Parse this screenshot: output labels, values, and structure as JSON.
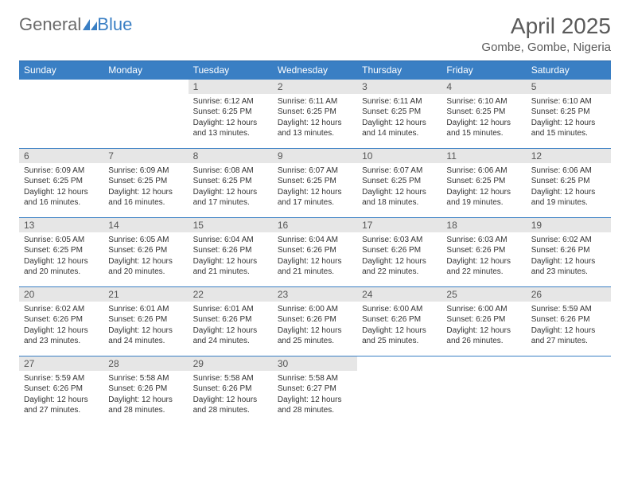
{
  "brand": {
    "text_general": "General",
    "text_blue": "Blue",
    "logo_color": "#3a7fc4",
    "text_gray": "#6a6a6a"
  },
  "header": {
    "month_title": "April 2025",
    "location": "Gombe, Gombe, Nigeria"
  },
  "styling": {
    "header_bg": "#3a7fc4",
    "header_text": "#ffffff",
    "daynum_bg": "#e6e6e6",
    "daynum_text": "#555555",
    "body_text": "#333333",
    "row_border": "#3a7fc4",
    "page_bg": "#ffffff",
    "font_family": "Arial, Helvetica, sans-serif",
    "month_title_fontsize": 28,
    "location_fontsize": 15,
    "weekday_fontsize": 12,
    "daynum_fontsize": 12,
    "cell_fontsize": 10
  },
  "weekdays": [
    "Sunday",
    "Monday",
    "Tuesday",
    "Wednesday",
    "Thursday",
    "Friday",
    "Saturday"
  ],
  "weeks": [
    [
      null,
      null,
      {
        "n": "1",
        "sunrise": "Sunrise: 6:12 AM",
        "sunset": "Sunset: 6:25 PM",
        "daylight": "Daylight: 12 hours and 13 minutes."
      },
      {
        "n": "2",
        "sunrise": "Sunrise: 6:11 AM",
        "sunset": "Sunset: 6:25 PM",
        "daylight": "Daylight: 12 hours and 13 minutes."
      },
      {
        "n": "3",
        "sunrise": "Sunrise: 6:11 AM",
        "sunset": "Sunset: 6:25 PM",
        "daylight": "Daylight: 12 hours and 14 minutes."
      },
      {
        "n": "4",
        "sunrise": "Sunrise: 6:10 AM",
        "sunset": "Sunset: 6:25 PM",
        "daylight": "Daylight: 12 hours and 15 minutes."
      },
      {
        "n": "5",
        "sunrise": "Sunrise: 6:10 AM",
        "sunset": "Sunset: 6:25 PM",
        "daylight": "Daylight: 12 hours and 15 minutes."
      }
    ],
    [
      {
        "n": "6",
        "sunrise": "Sunrise: 6:09 AM",
        "sunset": "Sunset: 6:25 PM",
        "daylight": "Daylight: 12 hours and 16 minutes."
      },
      {
        "n": "7",
        "sunrise": "Sunrise: 6:09 AM",
        "sunset": "Sunset: 6:25 PM",
        "daylight": "Daylight: 12 hours and 16 minutes."
      },
      {
        "n": "8",
        "sunrise": "Sunrise: 6:08 AM",
        "sunset": "Sunset: 6:25 PM",
        "daylight": "Daylight: 12 hours and 17 minutes."
      },
      {
        "n": "9",
        "sunrise": "Sunrise: 6:07 AM",
        "sunset": "Sunset: 6:25 PM",
        "daylight": "Daylight: 12 hours and 17 minutes."
      },
      {
        "n": "10",
        "sunrise": "Sunrise: 6:07 AM",
        "sunset": "Sunset: 6:25 PM",
        "daylight": "Daylight: 12 hours and 18 minutes."
      },
      {
        "n": "11",
        "sunrise": "Sunrise: 6:06 AM",
        "sunset": "Sunset: 6:25 PM",
        "daylight": "Daylight: 12 hours and 19 minutes."
      },
      {
        "n": "12",
        "sunrise": "Sunrise: 6:06 AM",
        "sunset": "Sunset: 6:25 PM",
        "daylight": "Daylight: 12 hours and 19 minutes."
      }
    ],
    [
      {
        "n": "13",
        "sunrise": "Sunrise: 6:05 AM",
        "sunset": "Sunset: 6:25 PM",
        "daylight": "Daylight: 12 hours and 20 minutes."
      },
      {
        "n": "14",
        "sunrise": "Sunrise: 6:05 AM",
        "sunset": "Sunset: 6:26 PM",
        "daylight": "Daylight: 12 hours and 20 minutes."
      },
      {
        "n": "15",
        "sunrise": "Sunrise: 6:04 AM",
        "sunset": "Sunset: 6:26 PM",
        "daylight": "Daylight: 12 hours and 21 minutes."
      },
      {
        "n": "16",
        "sunrise": "Sunrise: 6:04 AM",
        "sunset": "Sunset: 6:26 PM",
        "daylight": "Daylight: 12 hours and 21 minutes."
      },
      {
        "n": "17",
        "sunrise": "Sunrise: 6:03 AM",
        "sunset": "Sunset: 6:26 PM",
        "daylight": "Daylight: 12 hours and 22 minutes."
      },
      {
        "n": "18",
        "sunrise": "Sunrise: 6:03 AM",
        "sunset": "Sunset: 6:26 PM",
        "daylight": "Daylight: 12 hours and 22 minutes."
      },
      {
        "n": "19",
        "sunrise": "Sunrise: 6:02 AM",
        "sunset": "Sunset: 6:26 PM",
        "daylight": "Daylight: 12 hours and 23 minutes."
      }
    ],
    [
      {
        "n": "20",
        "sunrise": "Sunrise: 6:02 AM",
        "sunset": "Sunset: 6:26 PM",
        "daylight": "Daylight: 12 hours and 23 minutes."
      },
      {
        "n": "21",
        "sunrise": "Sunrise: 6:01 AM",
        "sunset": "Sunset: 6:26 PM",
        "daylight": "Daylight: 12 hours and 24 minutes."
      },
      {
        "n": "22",
        "sunrise": "Sunrise: 6:01 AM",
        "sunset": "Sunset: 6:26 PM",
        "daylight": "Daylight: 12 hours and 24 minutes."
      },
      {
        "n": "23",
        "sunrise": "Sunrise: 6:00 AM",
        "sunset": "Sunset: 6:26 PM",
        "daylight": "Daylight: 12 hours and 25 minutes."
      },
      {
        "n": "24",
        "sunrise": "Sunrise: 6:00 AM",
        "sunset": "Sunset: 6:26 PM",
        "daylight": "Daylight: 12 hours and 25 minutes."
      },
      {
        "n": "25",
        "sunrise": "Sunrise: 6:00 AM",
        "sunset": "Sunset: 6:26 PM",
        "daylight": "Daylight: 12 hours and 26 minutes."
      },
      {
        "n": "26",
        "sunrise": "Sunrise: 5:59 AM",
        "sunset": "Sunset: 6:26 PM",
        "daylight": "Daylight: 12 hours and 27 minutes."
      }
    ],
    [
      {
        "n": "27",
        "sunrise": "Sunrise: 5:59 AM",
        "sunset": "Sunset: 6:26 PM",
        "daylight": "Daylight: 12 hours and 27 minutes."
      },
      {
        "n": "28",
        "sunrise": "Sunrise: 5:58 AM",
        "sunset": "Sunset: 6:26 PM",
        "daylight": "Daylight: 12 hours and 28 minutes."
      },
      {
        "n": "29",
        "sunrise": "Sunrise: 5:58 AM",
        "sunset": "Sunset: 6:26 PM",
        "daylight": "Daylight: 12 hours and 28 minutes."
      },
      {
        "n": "30",
        "sunrise": "Sunrise: 5:58 AM",
        "sunset": "Sunset: 6:27 PM",
        "daylight": "Daylight: 12 hours and 28 minutes."
      },
      null,
      null,
      null
    ]
  ]
}
